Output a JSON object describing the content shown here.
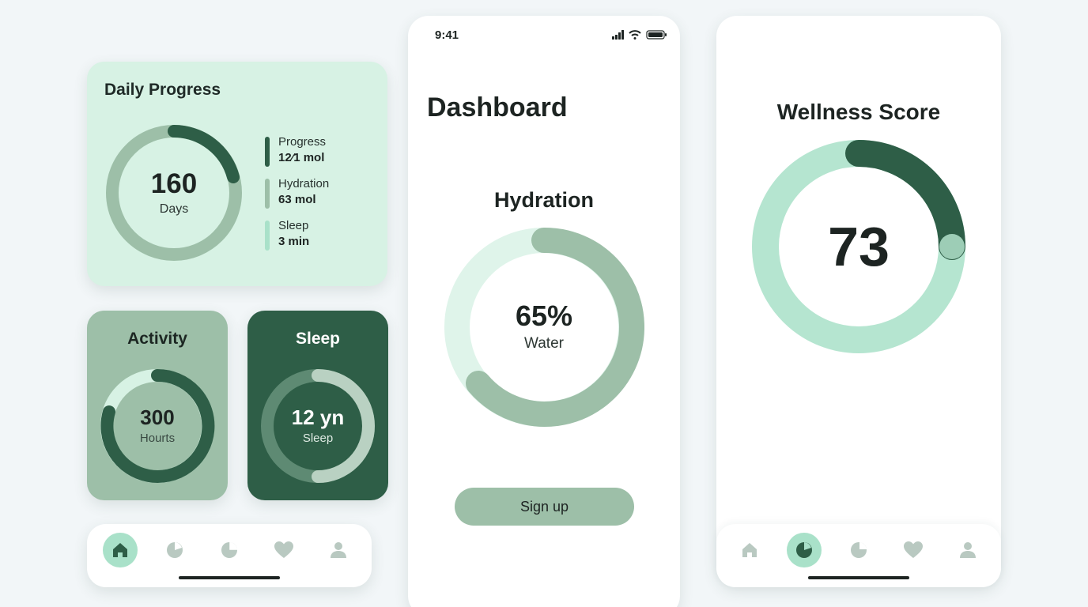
{
  "daily_progress": {
    "title": "Daily Progress",
    "ring_value": "160",
    "ring_unit": "Days",
    "legend": [
      {
        "label": "Progress",
        "value": "12⁄1 mol",
        "color": "#2e5e47"
      },
      {
        "label": "Hydration",
        "value": "63 mol",
        "color": "#9dbfa8"
      },
      {
        "label": "Sleep",
        "value": "3 min",
        "color": "#a9e1c9"
      }
    ]
  },
  "activity": {
    "title": "Activity",
    "value": "300",
    "unit": "Hourts"
  },
  "sleep": {
    "title": "Sleep",
    "value": "12 yn",
    "unit": "Sleep"
  },
  "status_bar": {
    "time": "9:41"
  },
  "dashboard": {
    "title": "Dashboard",
    "hydration_title": "Hydration",
    "hydration_value": "65%",
    "hydration_unit": "Water",
    "hydration_fraction": 0.65,
    "signup_label": "Sign up"
  },
  "wellness": {
    "title": "Wellness Score",
    "value": "73"
  },
  "nav": {
    "items": [
      {
        "icon": "home-icon"
      },
      {
        "icon": "pie-chart-icon"
      },
      {
        "icon": "chart-icon"
      },
      {
        "icon": "heart-icon"
      },
      {
        "icon": "user-icon"
      }
    ],
    "left_active": "home-icon",
    "right_active": "pie-chart-icon"
  },
  "colors": {
    "dark_green": "#2e5e47",
    "sage": "#9dbfa8",
    "mint": "#a9e1c9",
    "pale_mint": "#d7f2e4",
    "background": "#f2f6f8"
  }
}
